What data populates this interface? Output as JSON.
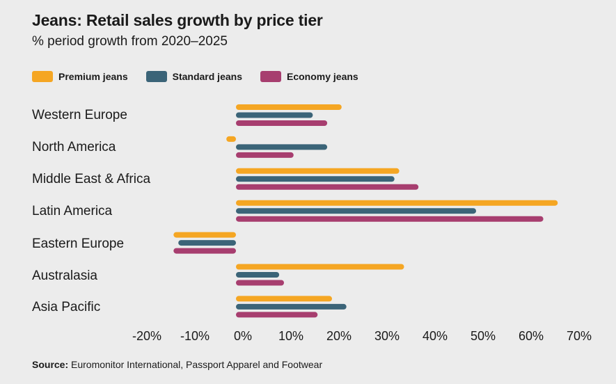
{
  "title": "Jeans: Retail sales growth by price tier",
  "subtitle": "% period growth from 2020–2025",
  "source": {
    "label": "Source:",
    "text": "Euromonitor International, Passport Apparel and Footwear"
  },
  "colors": {
    "premium": "#f5a623",
    "standard": "#3b6478",
    "economy": "#a73e6f"
  },
  "chart_data": {
    "type": "bar",
    "orientation": "horizontal",
    "title": "Jeans: Retail sales growth by price tier",
    "subtitle": "% period growth from 2020–2025",
    "categories": [
      "Western Europe",
      "North America",
      "Middle East & Africa",
      "Latin America",
      "Eastern Europe",
      "Australasia",
      "Asia Pacific"
    ],
    "series": [
      {
        "name": "Premium jeans",
        "color": "#f5a623",
        "values": [
          22,
          -2,
          34,
          67,
          -13,
          35,
          20
        ]
      },
      {
        "name": "Standard jeans",
        "color": "#3b6478",
        "values": [
          16,
          19,
          33,
          50,
          -12,
          9,
          23
        ]
      },
      {
        "name": "Economy jeans",
        "color": "#a73e6f",
        "values": [
          19,
          12,
          38,
          64,
          -13,
          10,
          17
        ]
      }
    ],
    "xlim": [
      -20,
      70
    ],
    "xticks": [
      -20,
      -10,
      0,
      10,
      20,
      30,
      40,
      50,
      60,
      70
    ],
    "xtick_labels": [
      "-20%",
      "-10%",
      "0%",
      "10%",
      "20%",
      "30%",
      "40%",
      "50%",
      "60%",
      "70%"
    ],
    "legend": "top-left",
    "grid": false
  }
}
